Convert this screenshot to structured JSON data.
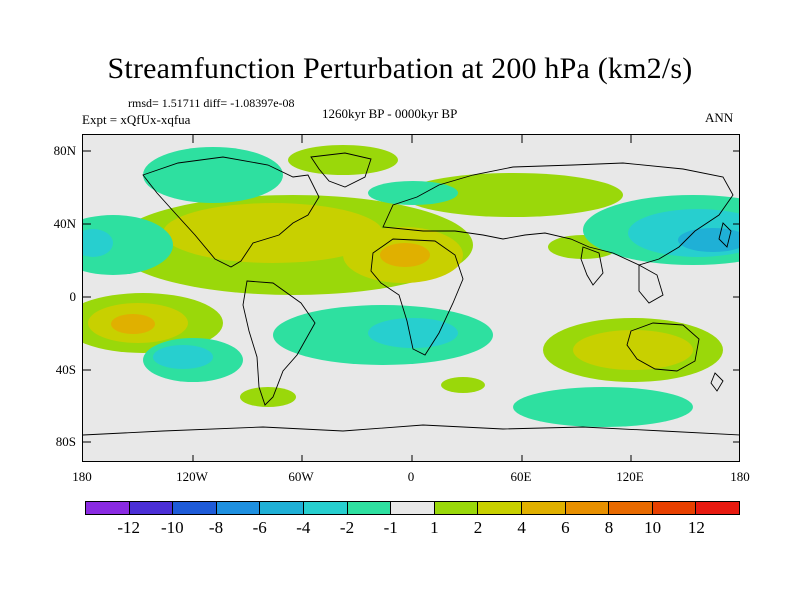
{
  "title": "Streamfunction Perturbation at 200 hPa (km2/s)",
  "stats": {
    "rmsd_line": "rmsd= 1.51711  diff= -1.08397e-08",
    "expt": "Expt = xQfUx-xqfua",
    "period": "1260kyr BP - 0000kyr BP",
    "season": "ANN"
  },
  "lat_ticks": [
    "80N",
    "40N",
    "0",
    "40S",
    "80S"
  ],
  "lon_ticks": [
    "180",
    "120W",
    "60W",
    "0",
    "60E",
    "120E",
    "180"
  ],
  "colorbar": {
    "colors": [
      "#8a2be2",
      "#4b2fd6",
      "#1e5bd8",
      "#1e90e0",
      "#1fb0d6",
      "#27cfcf",
      "#2ee0a0",
      "#e8e8e8",
      "#9ad80a",
      "#c8d000",
      "#e0b000",
      "#e89000",
      "#e86a00",
      "#e84000",
      "#e81a10"
    ],
    "labels": [
      "-12",
      "-10",
      "-8",
      "-6",
      "-4",
      "-2",
      "-1",
      "1",
      "2",
      "4",
      "6",
      "8",
      "10",
      "12"
    ]
  },
  "field_colors": {
    "pos1": "#9ad80a",
    "pos2": "#c8d000",
    "pos3": "#e0b000",
    "pos4": "#e89000",
    "neg1": "#2ee0a0",
    "neg2": "#27cfcf",
    "neg3": "#1fb0d6"
  }
}
